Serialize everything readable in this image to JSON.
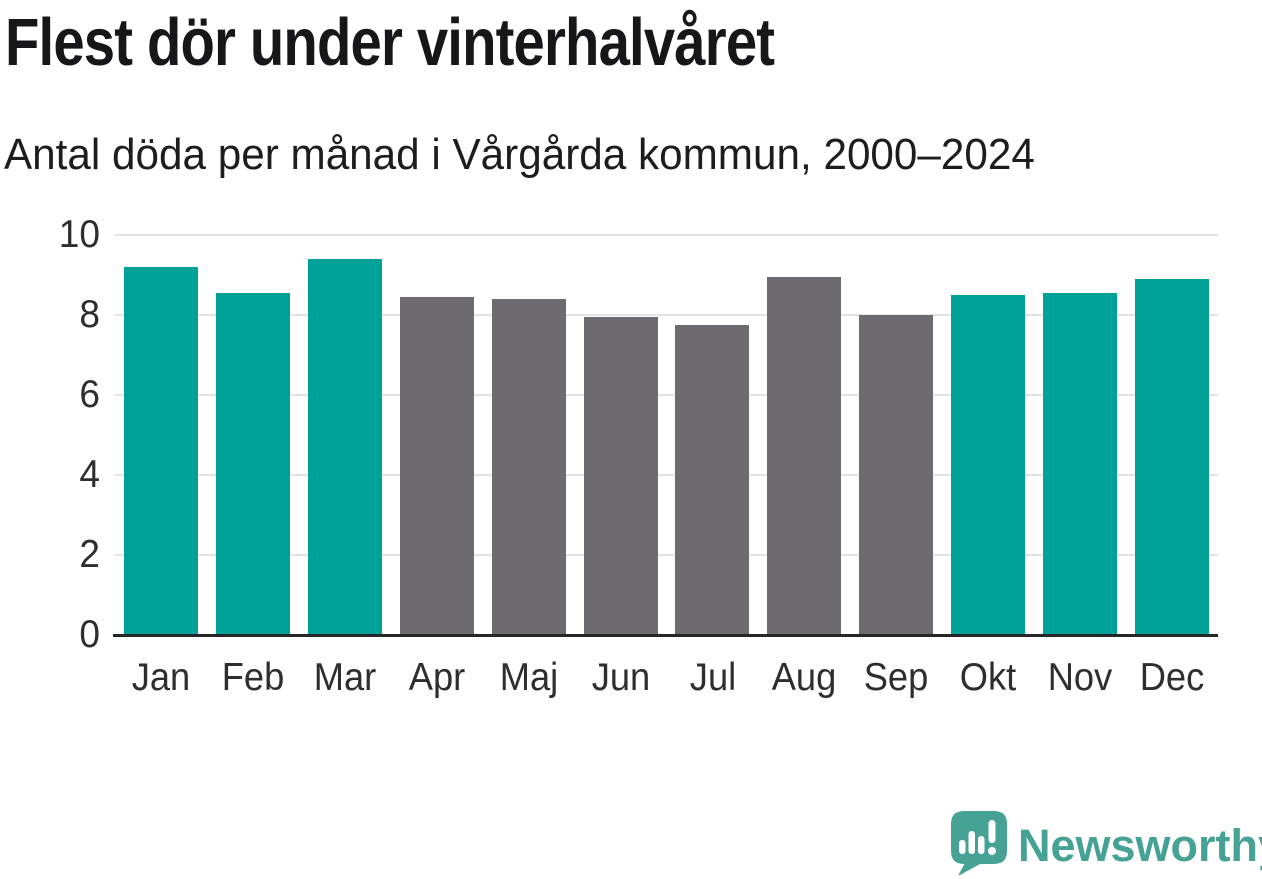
{
  "header": {
    "title": "Flest dör under vinterhalvåret",
    "subtitle": "Antal döda per månad i Vårgårda kommun, 2000–2024"
  },
  "chart_data": {
    "type": "bar",
    "title": "Flest dör under vinterhalvåret",
    "subtitle": "Antal döda per månad i Vårgårda kommun, 2000–2024",
    "categories": [
      "Jan",
      "Feb",
      "Mar",
      "Apr",
      "Maj",
      "Jun",
      "Jul",
      "Aug",
      "Sep",
      "Okt",
      "Nov",
      "Dec"
    ],
    "values": [
      9.2,
      8.55,
      9.4,
      8.45,
      8.4,
      7.95,
      7.75,
      8.95,
      8.0,
      8.5,
      8.55,
      8.9
    ],
    "bar_colors": [
      "#00a196",
      "#00a196",
      "#00a196",
      "#6d6a70",
      "#6d6a70",
      "#6d6a70",
      "#6d6a70",
      "#6d6a70",
      "#6d6a70",
      "#00a196",
      "#00a196",
      "#00a196"
    ],
    "highlight_color": "#00a196",
    "muted_color": "#6d6a70",
    "highlight_months": [
      "Jan",
      "Feb",
      "Mar",
      "Okt",
      "Nov",
      "Dec"
    ],
    "xlabel": "",
    "ylabel": "",
    "ylim": [
      0,
      10
    ],
    "yticks": [
      0,
      2,
      4,
      6,
      8,
      10
    ],
    "grid": true,
    "gridline_color": "#e4e4e4",
    "axis_line_color": "#262626",
    "legend": "none"
  },
  "footer": {
    "brand": "Newsworthy",
    "brand_color": "#46a294",
    "logo_icon": "newsworthy-bubble-chart-icon"
  }
}
